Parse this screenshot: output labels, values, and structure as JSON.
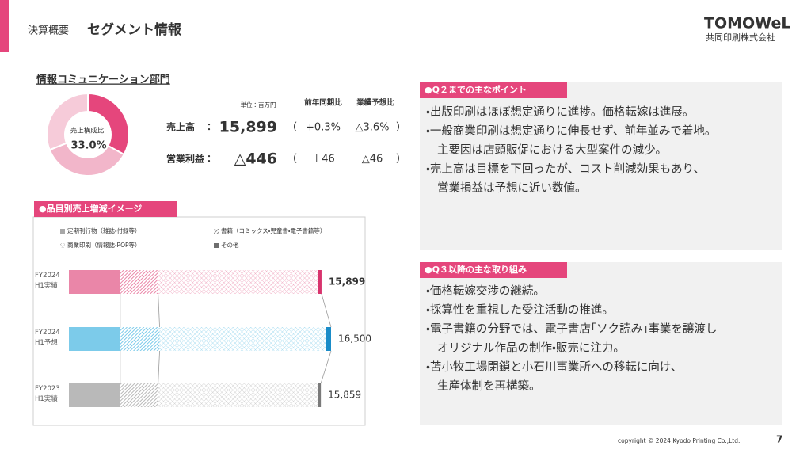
{
  "header": {
    "section": "決算概要",
    "title": "セグメント情報",
    "logo": "TOMOWeL",
    "company": "共同印刷株式会社"
  },
  "segment": {
    "title": "情報コミュニケーション部門",
    "metrics": {
      "unit": "単位：百万円",
      "columns": [
        "前年同期比",
        "業績予想比"
      ],
      "brackets": [
        "（",
        "）"
      ],
      "rows": [
        {
          "label": "売上高　：",
          "value": "15,899",
          "yoy": "+0.3%",
          "vs_forecast": "△3.6%"
        },
        {
          "label": "営業利益：",
          "value": "△446",
          "yoy": "＋46",
          "vs_forecast": "△46"
        }
      ]
    }
  },
  "chart_data": [
    {
      "type": "pie",
      "donut": true,
      "center_label": "売上構成比",
      "center_value_label": "33.0%",
      "values": [
        33.0,
        36,
        31
      ],
      "colors": [
        "#e5467c",
        "#f2b6ca",
        "#f6cbd9"
      ]
    },
    {
      "type": "stacked-bar",
      "orientation": "horizontal",
      "title": "●品目別売上増減イメージ",
      "categories": [
        "FY2024\nH1実績",
        "FY2024\nH1予想",
        "FY2023\nH1実績"
      ],
      "category_colors": [
        "#ea86a8",
        "#7ccbea",
        "#b9b9b9"
      ],
      "category_accent_colors": [
        "#d8336d",
        "#1a8cc8",
        "#7a7a7a"
      ],
      "series": [
        {
          "name": "定期刊行物（雑誌・付録等）",
          "pattern": "solid",
          "values": [
            3230,
            3230,
            3230
          ]
        },
        {
          "name": "書籍（コミックス・児童書・電子書籍等）",
          "pattern": "hatch",
          "values": [
            2385,
            2480,
            2385
          ]
        },
        {
          "name": "商業印刷（情報誌・POP等）",
          "pattern": "cross",
          "values": [
            10085,
            10490,
            10044
          ]
        },
        {
          "name": "その他",
          "pattern": "accent",
          "values": [
            199,
            300,
            200
          ]
        }
      ],
      "totals": [
        15899,
        16500,
        15859
      ],
      "total_labels": [
        "15,899",
        "16,500",
        "15,859"
      ],
      "highlight_category": 0
    }
  ],
  "points": {
    "title": "●Q２までの主なポイント",
    "bullets": [
      [
        "・出版印刷はほぼ想定通りに進捗。価格転嫁は進展。"
      ],
      [
        "・一般商業印刷は想定通りに伸長せず、前年並みで着地。",
        "主要因は店頭販促における大型案件の減少。"
      ],
      [
        "・売上高は目標を下回ったが、コスト削減効果もあり、",
        "営業損益は予想に近い数値。"
      ]
    ]
  },
  "initiatives": {
    "title": "●Q３以降の主な取り組み",
    "bullets": [
      [
        "・価格転嫁交渉の継続。"
      ],
      [
        "・採算性を重視した受注活動の推進。"
      ],
      [
        "・電子書籍の分野では、電子書店｢ソク読み｣事業を譲渡し",
        "オリジナル作品の制作・販売に注力。"
      ],
      [
        "・苫小牧工場閉鎖と小石川事業所への移転に向け、",
        "生産体制を再構築。"
      ]
    ]
  },
  "footer": {
    "copyright": "copyright © 2024 Kyodo Printing Co.,Ltd.",
    "page": "7"
  }
}
